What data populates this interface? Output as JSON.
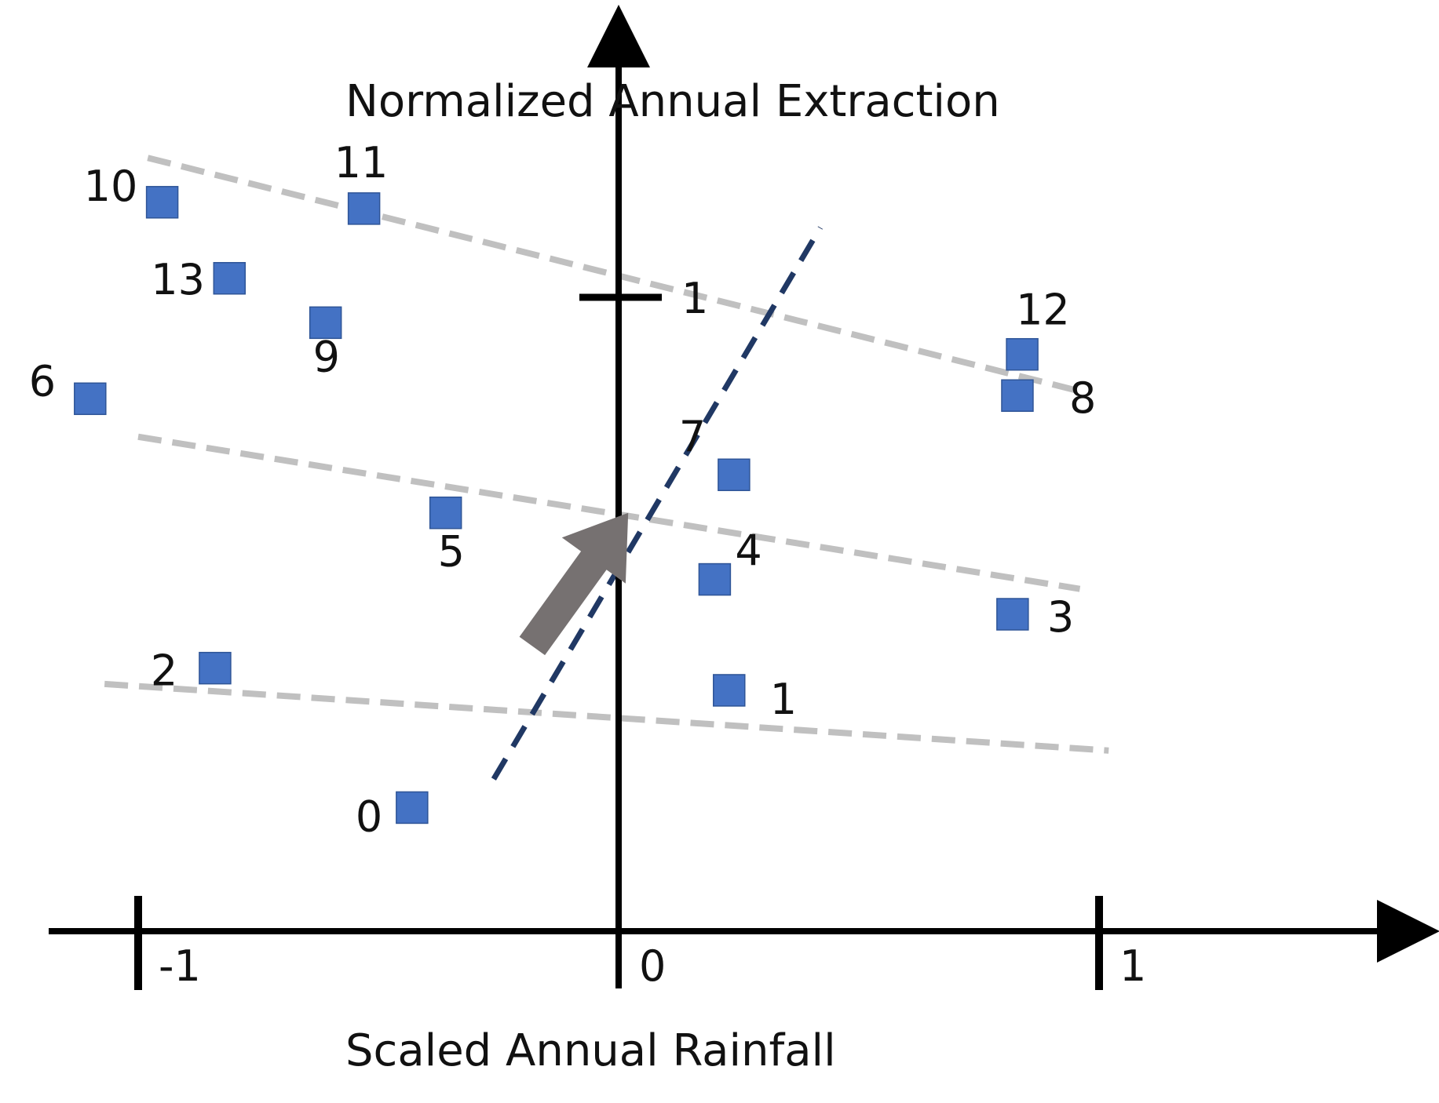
{
  "chart_data": {
    "type": "scatter",
    "title": "",
    "xlabel": "Scaled Annual Rainfall",
    "ylabel": "Normalized Annual Extraction",
    "xlim": [
      -1.1,
      1.65
    ],
    "ylim": [
      -0.13,
      1.5
    ],
    "x_ticks": [
      {
        "value": -1,
        "label": "-1"
      },
      {
        "value": 0,
        "label": "0"
      },
      {
        "value": 1,
        "label": "1"
      }
    ],
    "y_ticks": [
      {
        "value": 1,
        "label": "1"
      }
    ],
    "grid": false,
    "colors": {
      "points": "#4472c4",
      "points_edge": "#2f5597",
      "trend": "#c0c0c0",
      "regression": "#203864",
      "arrow": "#767171",
      "axis": "#000000"
    },
    "points": [
      {
        "id": "0",
        "x": -0.43,
        "y": 0.195
      },
      {
        "id": "1",
        "x": 0.23,
        "y": 0.38
      },
      {
        "id": "2",
        "x": -0.84,
        "y": 0.415
      },
      {
        "id": "3",
        "x": 0.82,
        "y": 0.5
      },
      {
        "id": "4",
        "x": 0.2,
        "y": 0.555
      },
      {
        "id": "5",
        "x": -0.36,
        "y": 0.66
      },
      {
        "id": "6",
        "x": -1.1,
        "y": 0.84
      },
      {
        "id": "7",
        "x": 0.24,
        "y": 0.72
      },
      {
        "id": "8",
        "x": 0.83,
        "y": 0.845
      },
      {
        "id": "9",
        "x": -0.61,
        "y": 0.96
      },
      {
        "id": "10",
        "x": -0.95,
        "y": 1.15
      },
      {
        "id": "11",
        "x": -0.53,
        "y": 1.14
      },
      {
        "id": "12",
        "x": 0.84,
        "y": 0.91
      },
      {
        "id": "13",
        "x": -0.81,
        "y": 1.03
      }
    ],
    "trend_lines": [
      {
        "name": "upper",
        "x": [
          -0.98,
          0.97
        ],
        "y": [
          1.22,
          0.85
        ]
      },
      {
        "name": "middle",
        "x": [
          -1.0,
          0.96
        ],
        "y": [
          0.78,
          0.54
        ]
      },
      {
        "name": "lower",
        "x": [
          -1.07,
          1.02
        ],
        "y": [
          0.39,
          0.285
        ]
      }
    ],
    "regression_line": {
      "x": [
        -0.26,
        0.42
      ],
      "y": [
        0.24,
        1.11
      ]
    },
    "arrow": {
      "from": [
        -0.18,
        0.45
      ],
      "to": [
        0.02,
        0.66
      ]
    }
  }
}
